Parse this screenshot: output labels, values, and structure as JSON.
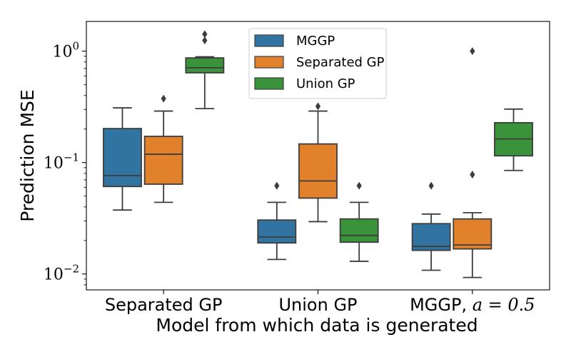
{
  "chart_data": {
    "type": "box",
    "xlabel": "Model from which data is generated",
    "ylabel": "Prediction MSE",
    "yscale": "log",
    "ylim": [
      0.0072,
      1.85
    ],
    "yticks": [
      {
        "value": 0.01,
        "base": "10",
        "exp": "−2"
      },
      {
        "value": 0.1,
        "base": "10",
        "exp": "−1"
      },
      {
        "value": 1,
        "base": "10",
        "exp": "0"
      }
    ],
    "categories": [
      "Separated GP",
      "Union GP"
    ],
    "last_category": {
      "text": "MGGP, ",
      "math": "a = 0.5"
    },
    "legend_position": "upper center",
    "series": [
      {
        "name": "MGGP",
        "color": "#3274a1",
        "boxes": [
          {
            "whislo": 0.0375,
            "q1": 0.061,
            "med": 0.0765,
            "q3": 0.202,
            "whishi": 0.31,
            "fliers": []
          },
          {
            "whislo": 0.0135,
            "q1": 0.019,
            "med": 0.0215,
            "q3": 0.0305,
            "whishi": 0.044,
            "fliers": [
              0.062
            ]
          },
          {
            "whislo": 0.0108,
            "q1": 0.0163,
            "med": 0.0177,
            "q3": 0.0283,
            "whishi": 0.0345,
            "fliers": [
              0.062
            ]
          }
        ]
      },
      {
        "name": "Separated GP",
        "color": "#e1812c",
        "boxes": [
          {
            "whislo": 0.044,
            "q1": 0.064,
            "med": 0.119,
            "q3": 0.172,
            "whishi": 0.29,
            "fliers": [
              0.375
            ]
          },
          {
            "whislo": 0.0295,
            "q1": 0.048,
            "med": 0.0685,
            "q3": 0.147,
            "whishi": 0.29,
            "fliers": [
              0.32
            ]
          },
          {
            "whislo": 0.0093,
            "q1": 0.0168,
            "med": 0.0182,
            "q3": 0.0312,
            "whishi": 0.0355,
            "fliers": [
              0.078,
              1.0
            ]
          }
        ]
      },
      {
        "name": "Union GP",
        "color": "#3a923a",
        "boxes": [
          {
            "whislo": 0.305,
            "q1": 0.64,
            "med": 0.71,
            "q3": 0.87,
            "whishi": 0.89,
            "fliers": [
              1.25,
              1.42
            ]
          },
          {
            "whislo": 0.013,
            "q1": 0.0193,
            "med": 0.0222,
            "q3": 0.0312,
            "whishi": 0.044,
            "fliers": [
              0.062
            ]
          },
          {
            "whislo": 0.085,
            "q1": 0.115,
            "med": 0.163,
            "q3": 0.228,
            "whishi": 0.302,
            "fliers": []
          }
        ]
      }
    ]
  }
}
